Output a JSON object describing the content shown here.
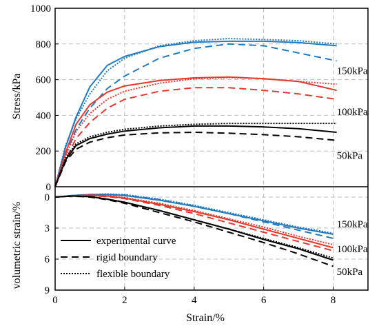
{
  "chart_data": [
    {
      "type": "line",
      "panel": "stress",
      "ylabel": "Stress/kPa",
      "ylim": [
        0,
        1000
      ],
      "yticks": [
        "0",
        "200",
        "400",
        "600",
        "800",
        "1000"
      ],
      "xlim": [
        0,
        9
      ],
      "grid": true,
      "annotations": [
        {
          "text": "150kPa",
          "x": 8.1,
          "y": 650
        },
        {
          "text": "100kPa",
          "x": 8.1,
          "y": 420
        },
        {
          "text": "50kPa",
          "x": 8.1,
          "y": 175
        }
      ],
      "series": [
        {
          "pressure": "150kPa",
          "boundary": "experimental curve",
          "color": "#1f7bbf",
          "x": [
            0,
            0.3,
            0.6,
            1,
            1.5,
            2,
            3,
            4,
            5,
            6,
            7,
            8.1
          ],
          "y": [
            0,
            220,
            390,
            560,
            680,
            730,
            785,
            810,
            815,
            815,
            808,
            790
          ]
        },
        {
          "pressure": "150kPa",
          "boundary": "rigid boundary",
          "color": "#1f7bbf",
          "x": [
            0,
            0.3,
            0.6,
            1,
            1.5,
            2,
            3,
            4,
            5,
            6,
            7,
            8.1
          ],
          "y": [
            0,
            180,
            320,
            440,
            550,
            620,
            720,
            775,
            800,
            790,
            750,
            705
          ]
        },
        {
          "pressure": "150kPa",
          "boundary": "flexible boundary",
          "color": "#1f7bbf",
          "x": [
            0,
            0.3,
            0.6,
            1,
            1.5,
            2,
            3,
            4,
            5,
            6,
            7,
            8.1
          ],
          "y": [
            0,
            230,
            380,
            520,
            650,
            720,
            790,
            818,
            830,
            825,
            818,
            800
          ]
        },
        {
          "pressure": "100kPa",
          "boundary": "experimental curve",
          "color": "#e8372c",
          "x": [
            0,
            0.3,
            0.6,
            1,
            1.5,
            2,
            3,
            4,
            5,
            6,
            7,
            8.1
          ],
          "y": [
            0,
            190,
            350,
            460,
            530,
            565,
            595,
            610,
            615,
            605,
            590,
            540
          ]
        },
        {
          "pressure": "100kPa",
          "boundary": "rigid boundary",
          "color": "#e8372c",
          "x": [
            0,
            0.3,
            0.6,
            1,
            1.5,
            2,
            3,
            4,
            5,
            6,
            7,
            8.1
          ],
          "y": [
            0,
            150,
            270,
            360,
            440,
            490,
            535,
            555,
            555,
            540,
            520,
            490
          ]
        },
        {
          "pressure": "100kPa",
          "boundary": "flexible boundary",
          "color": "#e8372c",
          "x": [
            0,
            0.3,
            0.6,
            1,
            1.5,
            2,
            3,
            4,
            5,
            6,
            7,
            8.1
          ],
          "y": [
            0,
            170,
            310,
            410,
            490,
            535,
            580,
            605,
            612,
            606,
            590,
            575
          ]
        },
        {
          "pressure": "50kPa",
          "boundary": "experimental curve",
          "color": "#000000",
          "x": [
            0,
            0.3,
            0.6,
            1,
            1.5,
            2,
            3,
            4,
            5,
            6,
            7,
            8.1
          ],
          "y": [
            0,
            150,
            230,
            270,
            295,
            312,
            330,
            340,
            340,
            335,
            325,
            305
          ]
        },
        {
          "pressure": "50kPa",
          "boundary": "rigid boundary",
          "color": "#000000",
          "x": [
            0,
            0.3,
            0.6,
            1,
            1.5,
            2,
            3,
            4,
            5,
            6,
            7,
            8.1
          ],
          "y": [
            0,
            140,
            210,
            250,
            275,
            290,
            302,
            305,
            300,
            292,
            280,
            260
          ]
        },
        {
          "pressure": "50kPa",
          "boundary": "flexible boundary",
          "color": "#000000",
          "x": [
            0,
            0.3,
            0.6,
            1,
            1.5,
            2,
            3,
            4,
            5,
            6,
            7,
            8.1
          ],
          "y": [
            0,
            160,
            240,
            280,
            305,
            322,
            340,
            350,
            355,
            355,
            355,
            355
          ]
        }
      ]
    },
    {
      "type": "line",
      "panel": "volumetric",
      "xlabel": "Strain/%",
      "ylabel": "volumetric strain/%",
      "ylim": [
        9,
        -1
      ],
      "yticks": [
        "0",
        "3",
        "6",
        "9"
      ],
      "xlim": [
        0,
        9
      ],
      "xticks": [
        "0",
        "2",
        "4",
        "6",
        "8"
      ],
      "grid": true,
      "annotations": [
        {
          "text": "150kPa",
          "x": 8.1,
          "y": 2.6
        },
        {
          "text": "100kPa",
          "x": 8.1,
          "y": 5.0
        },
        {
          "text": "50kPa",
          "x": 8.1,
          "y": 7.2
        }
      ],
      "legend": {
        "placement": "bottom-left",
        "entries": [
          "experimental curve",
          "rigid boundary",
          "flexible boundary"
        ]
      },
      "series": [
        {
          "pressure": "150kPa",
          "boundary": "experimental curve",
          "color": "#1f7bbf",
          "x": [
            0,
            0.5,
            1,
            1.5,
            2,
            3,
            4,
            5,
            6,
            7,
            8
          ],
          "y": [
            0,
            -0.15,
            -0.25,
            -0.25,
            -0.15,
            0.3,
            0.9,
            1.6,
            2.3,
            3.0,
            3.6
          ]
        },
        {
          "pressure": "150kPa",
          "boundary": "rigid boundary",
          "color": "#1f7bbf",
          "x": [
            0,
            0.5,
            1,
            1.5,
            2,
            3,
            4,
            5,
            6,
            7,
            8
          ],
          "y": [
            0,
            -0.15,
            -0.25,
            -0.25,
            -0.2,
            0.25,
            0.85,
            1.6,
            2.4,
            3.2,
            4.0
          ]
        },
        {
          "pressure": "150kPa",
          "boundary": "flexible boundary",
          "color": "#1f7bbf",
          "x": [
            0,
            0.5,
            1,
            1.5,
            2,
            3,
            4,
            5,
            6,
            7,
            8
          ],
          "y": [
            0,
            -0.15,
            -0.25,
            -0.3,
            -0.25,
            0.2,
            0.8,
            1.5,
            2.2,
            2.9,
            3.5
          ]
        },
        {
          "pressure": "100kPa",
          "boundary": "experimental curve",
          "color": "#e8372c",
          "x": [
            0,
            0.5,
            1,
            1.5,
            2,
            3,
            4,
            5,
            6,
            7,
            8
          ],
          "y": [
            0,
            -0.12,
            -0.18,
            -0.1,
            0.1,
            0.7,
            1.4,
            2.2,
            3.1,
            4.0,
            4.9
          ]
        },
        {
          "pressure": "100kPa",
          "boundary": "rigid boundary",
          "color": "#e8372c",
          "x": [
            0,
            0.5,
            1,
            1.5,
            2,
            3,
            4,
            5,
            6,
            7,
            8
          ],
          "y": [
            0,
            -0.1,
            -0.15,
            -0.05,
            0.15,
            0.8,
            1.6,
            2.5,
            3.4,
            4.3,
            5.2
          ]
        },
        {
          "pressure": "100kPa",
          "boundary": "flexible boundary",
          "color": "#e8372c",
          "x": [
            0,
            0.5,
            1,
            1.5,
            2,
            3,
            4,
            5,
            6,
            7,
            8
          ],
          "y": [
            0,
            -0.12,
            -0.2,
            -0.15,
            0.05,
            0.6,
            1.3,
            2.1,
            2.9,
            3.8,
            4.6
          ]
        },
        {
          "pressure": "50kPa",
          "boundary": "experimental curve",
          "color": "#000000",
          "x": [
            0,
            0.5,
            1,
            1.5,
            2,
            3,
            4,
            5,
            6,
            7,
            8
          ],
          "y": [
            0,
            -0.1,
            -0.05,
            0.2,
            0.5,
            1.3,
            2.2,
            3.1,
            4.1,
            5.0,
            6.1
          ]
        },
        {
          "pressure": "50kPa",
          "boundary": "rigid boundary",
          "color": "#000000",
          "x": [
            0,
            0.5,
            1,
            1.5,
            2,
            3,
            4,
            5,
            6,
            7,
            8
          ],
          "y": [
            0,
            -0.1,
            0,
            0.25,
            0.6,
            1.5,
            2.4,
            3.4,
            4.4,
            5.5,
            6.7
          ]
        },
        {
          "pressure": "50kPa",
          "boundary": "flexible boundary",
          "color": "#000000",
          "x": [
            0,
            0.5,
            1,
            1.5,
            2,
            3,
            4,
            5,
            6,
            7,
            8
          ],
          "y": [
            0,
            -0.1,
            -0.05,
            0.2,
            0.5,
            1.3,
            2.2,
            3.1,
            4.0,
            4.9,
            5.9
          ]
        }
      ]
    }
  ],
  "dash_styles": {
    "experimental curve": "",
    "rigid boundary": "10 6",
    "flexible boundary": "2 2"
  }
}
